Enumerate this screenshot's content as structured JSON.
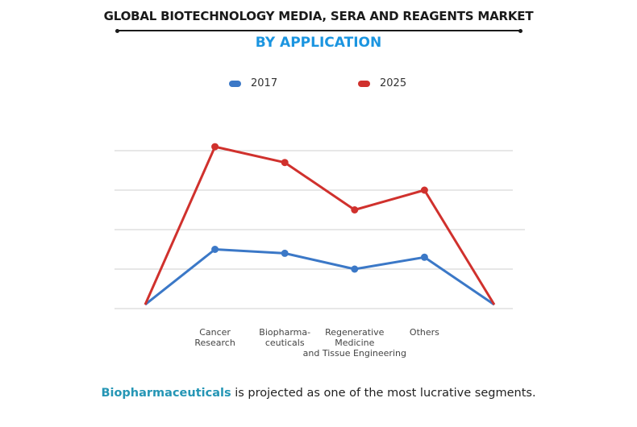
{
  "header": {
    "title": "GLOBAL BIOTECHNOLOGY MEDIA, SERA AND REAGENTS MARKET",
    "subtitle": "BY APPLICATION"
  },
  "colors": {
    "series_2017": "#3b78c7",
    "series_2025": "#d0312d",
    "subtitle": "#1b95e0",
    "highlight": "#2596b5",
    "grid": "#cfcfcf"
  },
  "chart_data": {
    "type": "line",
    "title": "GLOBAL BIOTECHNOLOGY MEDIA, SERA AND REAGENTS MARKET",
    "subtitle": "BY APPLICATION",
    "xlabel": "",
    "ylabel": "",
    "categories": [
      "",
      "Cancer\nResearch",
      "Biopharma-\nceuticals",
      "Regenerative\nMedicine\nand Tissue Engineering",
      "Others",
      ""
    ],
    "series": [
      {
        "name": "2017",
        "values": [
          0.1,
          1.5,
          1.4,
          1.0,
          1.3,
          0.1
        ],
        "markers": [
          false,
          true,
          true,
          true,
          true,
          false
        ]
      },
      {
        "name": "2025",
        "values": [
          0.1,
          4.1,
          3.7,
          2.5,
          3.0,
          0.1
        ],
        "markers": [
          false,
          true,
          true,
          true,
          true,
          false
        ]
      }
    ],
    "ylim": [
      0,
      4.1
    ],
    "gridlines": [
      0,
      1,
      2,
      3,
      4
    ],
    "grid": true,
    "y_tick_labels_shown": false,
    "legend": "top-center"
  },
  "legend": [
    {
      "label": "2017"
    },
    {
      "label": "2025"
    }
  ],
  "footer": {
    "highlight": "Biopharmaceuticals",
    "text": " is projected as one of the most lucrative segments."
  }
}
